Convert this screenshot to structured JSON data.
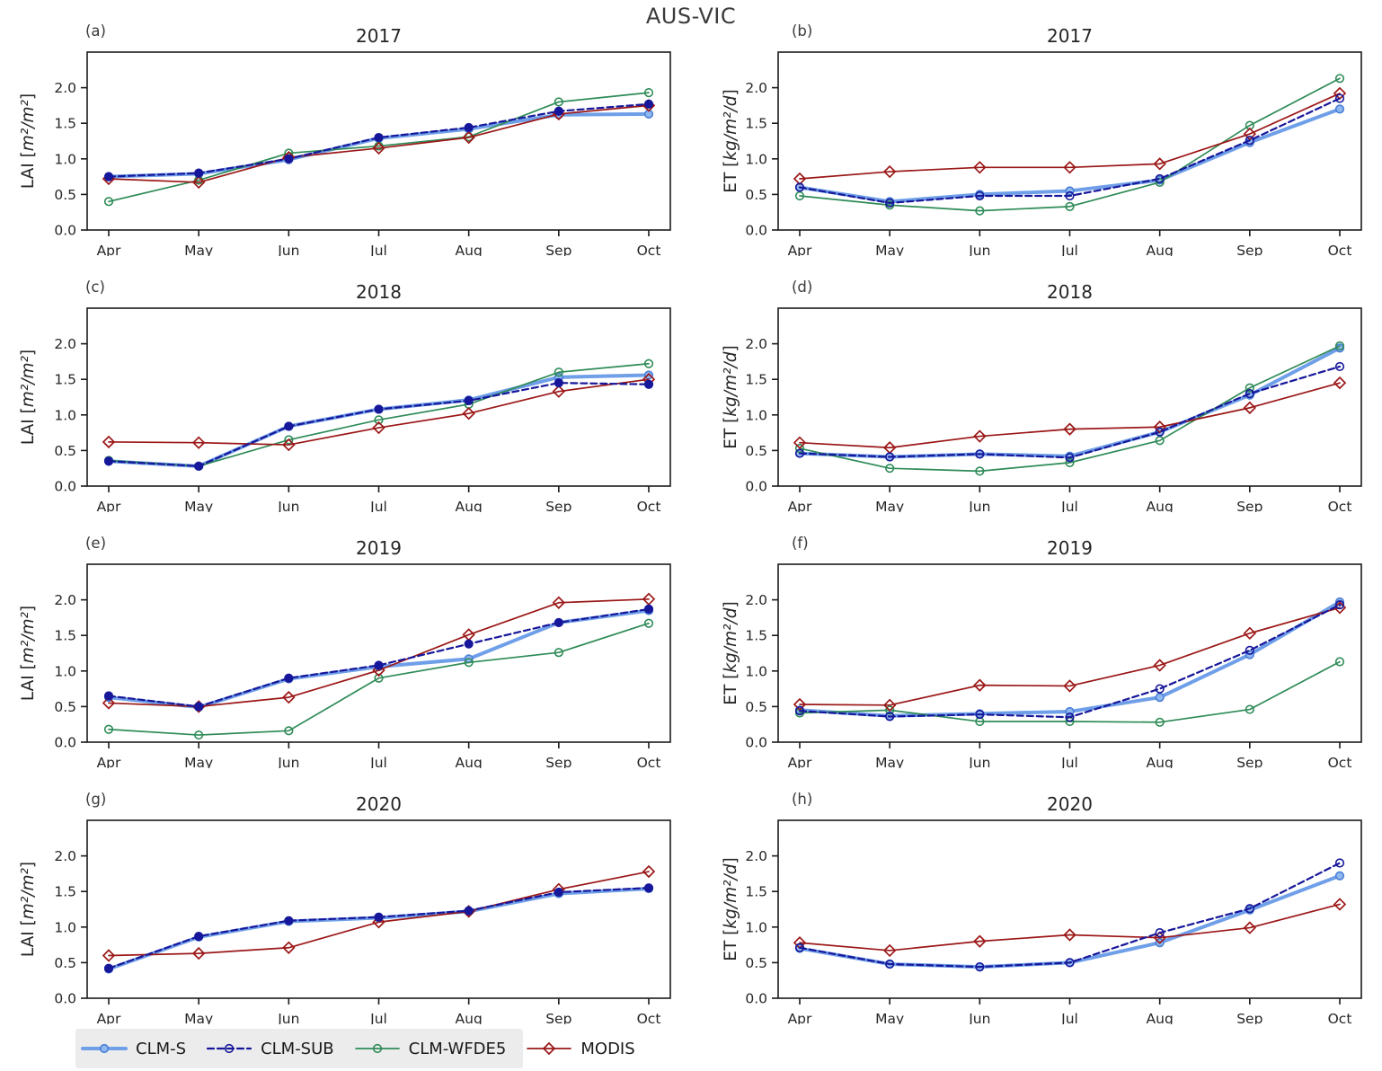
{
  "title": "AUS-VIC",
  "months": [
    "Apr",
    "May",
    "Jun",
    "Jul",
    "Aug",
    "Sep",
    "Oct"
  ],
  "yticks": [
    0.0,
    0.5,
    1.0,
    1.5,
    2.0
  ],
  "ylim": [
    0,
    2.5
  ],
  "axis_labels": {
    "lai": "LAI [m²/m²]",
    "et": "ET [kg/m²/d]"
  },
  "colors": {
    "clm_s": "#6f9fe8",
    "clm_s_edge": "#4a7fd6",
    "clm_s_fill": "#8fb8f0",
    "clm_sub": "#17179b",
    "clm_wfde5": "#2e8b57",
    "modis": "#9b1717",
    "axis": "#1a1a1a",
    "text": "#262626"
  },
  "legend": [
    {
      "label": "CLM-S",
      "color": "#6f9fe8",
      "lw": 4,
      "dash": "",
      "marker": "circle",
      "marker_edge": "#4a7fd6",
      "marker_fill": "#8fb8f0"
    },
    {
      "label": "CLM-SUB",
      "color": "#17179b",
      "lw": 2.2,
      "dash": "7 4",
      "marker": "circle",
      "marker_edge": "#17179b",
      "marker_fill": "none"
    },
    {
      "label": "CLM-WFDE5",
      "color": "#2e8b57",
      "lw": 1.7,
      "dash": "",
      "marker": "circle",
      "marker_edge": "#2e8b57",
      "marker_fill": "none"
    },
    {
      "label": "MODIS",
      "color": "#9b1717",
      "lw": 1.7,
      "dash": "",
      "marker": "diamond",
      "marker_edge": "#9b1717",
      "marker_fill": "none"
    }
  ],
  "chart_data": [
    {
      "type": "line",
      "panel": "(a)",
      "title": "2017",
      "metric": "lai",
      "ylabel": "LAI [m²/m²]",
      "xlabel": "",
      "ylim": [
        0,
        2.5
      ],
      "grid": false,
      "categories": [
        "Apr",
        "May",
        "Jun",
        "Jul",
        "Aug",
        "Sep",
        "Oct"
      ],
      "series": [
        {
          "name": "CLM-S",
          "values": [
            0.75,
            0.79,
            0.99,
            1.29,
            1.42,
            1.62,
            1.63
          ]
        },
        {
          "name": "CLM-SUB",
          "values": [
            0.75,
            0.8,
            1.0,
            1.3,
            1.44,
            1.67,
            1.77
          ]
        },
        {
          "name": "CLM-WFDE5",
          "values": [
            0.4,
            0.7,
            1.08,
            1.18,
            1.31,
            1.8,
            1.93
          ]
        },
        {
          "name": "MODIS",
          "values": [
            0.72,
            0.67,
            1.02,
            1.15,
            1.3,
            1.63,
            1.75
          ]
        }
      ]
    },
    {
      "type": "line",
      "panel": "(b)",
      "title": "2017",
      "metric": "et",
      "ylabel": "ET [kg/m²/d]",
      "xlabel": "",
      "ylim": [
        0,
        2.5
      ],
      "grid": false,
      "categories": [
        "Apr",
        "May",
        "Jun",
        "Jul",
        "Aug",
        "Sep",
        "Oct"
      ],
      "series": [
        {
          "name": "CLM-S",
          "values": [
            0.6,
            0.4,
            0.5,
            0.55,
            0.7,
            1.23,
            1.7
          ]
        },
        {
          "name": "CLM-SUB",
          "values": [
            0.6,
            0.38,
            0.48,
            0.48,
            0.72,
            1.26,
            1.85
          ]
        },
        {
          "name": "CLM-WFDE5",
          "values": [
            0.48,
            0.35,
            0.27,
            0.33,
            0.67,
            1.47,
            2.13
          ]
        },
        {
          "name": "MODIS",
          "values": [
            0.72,
            0.82,
            0.88,
            0.88,
            0.93,
            1.35,
            1.92
          ]
        }
      ]
    },
    {
      "type": "line",
      "panel": "(c)",
      "title": "2018",
      "metric": "lai",
      "ylabel": "LAI [m²/m²]",
      "xlabel": "",
      "ylim": [
        0,
        2.5
      ],
      "grid": false,
      "categories": [
        "Apr",
        "May",
        "Jun",
        "Jul",
        "Aug",
        "Sep",
        "Oct"
      ],
      "series": [
        {
          "name": "CLM-S",
          "values": [
            0.35,
            0.28,
            0.84,
            1.08,
            1.21,
            1.53,
            1.56
          ]
        },
        {
          "name": "CLM-SUB",
          "values": [
            0.35,
            0.28,
            0.84,
            1.08,
            1.2,
            1.45,
            1.43
          ]
        },
        {
          "name": "CLM-WFDE5",
          "values": [
            0.36,
            0.28,
            0.65,
            0.93,
            1.15,
            1.6,
            1.72
          ]
        },
        {
          "name": "MODIS",
          "values": [
            0.62,
            0.61,
            0.58,
            0.82,
            1.02,
            1.33,
            1.5
          ]
        }
      ]
    },
    {
      "type": "line",
      "panel": "(d)",
      "title": "2018",
      "metric": "et",
      "ylabel": "ET [kg/m²/d]",
      "xlabel": "",
      "ylim": [
        0,
        2.5
      ],
      "grid": false,
      "categories": [
        "Apr",
        "May",
        "Jun",
        "Jul",
        "Aug",
        "Sep",
        "Oct"
      ],
      "series": [
        {
          "name": "CLM-S",
          "values": [
            0.46,
            0.41,
            0.45,
            0.42,
            0.76,
            1.28,
            1.94
          ]
        },
        {
          "name": "CLM-SUB",
          "values": [
            0.46,
            0.41,
            0.45,
            0.4,
            0.76,
            1.3,
            1.68
          ]
        },
        {
          "name": "CLM-WFDE5",
          "values": [
            0.53,
            0.25,
            0.21,
            0.33,
            0.64,
            1.38,
            1.97
          ]
        },
        {
          "name": "MODIS",
          "values": [
            0.61,
            0.54,
            0.7,
            0.8,
            0.83,
            1.1,
            1.45
          ]
        }
      ]
    },
    {
      "type": "line",
      "panel": "(e)",
      "title": "2019",
      "metric": "lai",
      "ylabel": "LAI [m²/m²]",
      "xlabel": "",
      "ylim": [
        0,
        2.5
      ],
      "grid": false,
      "categories": [
        "Apr",
        "May",
        "Jun",
        "Jul",
        "Aug",
        "Sep",
        "Oct"
      ],
      "series": [
        {
          "name": "CLM-S",
          "values": [
            0.63,
            0.49,
            0.89,
            1.06,
            1.17,
            1.68,
            1.85
          ]
        },
        {
          "name": "CLM-SUB",
          "values": [
            0.65,
            0.5,
            0.9,
            1.08,
            1.38,
            1.68,
            1.87
          ]
        },
        {
          "name": "CLM-WFDE5",
          "values": [
            0.18,
            0.1,
            0.16,
            0.9,
            1.12,
            1.26,
            1.67
          ]
        },
        {
          "name": "MODIS",
          "values": [
            0.55,
            0.5,
            0.63,
            1.01,
            1.51,
            1.96,
            2.01
          ]
        }
      ]
    },
    {
      "type": "line",
      "panel": "(f)",
      "title": "2019",
      "metric": "et",
      "ylabel": "ET [kg/m²/d]",
      "xlabel": "",
      "ylim": [
        0,
        2.5
      ],
      "grid": false,
      "categories": [
        "Apr",
        "May",
        "Jun",
        "Jul",
        "Aug",
        "Sep",
        "Oct"
      ],
      "series": [
        {
          "name": "CLM-S",
          "values": [
            0.45,
            0.37,
            0.4,
            0.43,
            0.63,
            1.23,
            1.97
          ]
        },
        {
          "name": "CLM-SUB",
          "values": [
            0.44,
            0.36,
            0.39,
            0.35,
            0.75,
            1.29,
            1.93
          ]
        },
        {
          "name": "CLM-WFDE5",
          "values": [
            0.41,
            0.45,
            0.29,
            0.29,
            0.28,
            0.46,
            1.13
          ]
        },
        {
          "name": "MODIS",
          "values": [
            0.53,
            0.52,
            0.8,
            0.79,
            1.08,
            1.53,
            1.89
          ]
        }
      ]
    },
    {
      "type": "line",
      "panel": "(g)",
      "title": "2020",
      "metric": "lai",
      "ylabel": "LAI [m²/m²]",
      "xlabel": "",
      "ylim": [
        0,
        2.5
      ],
      "grid": false,
      "categories": [
        "Apr",
        "May",
        "Jun",
        "Jul",
        "Aug",
        "Sep",
        "Oct"
      ],
      "series": [
        {
          "name": "CLM-S",
          "values": [
            0.41,
            0.86,
            1.08,
            1.13,
            1.22,
            1.47,
            1.54
          ]
        },
        {
          "name": "CLM-SUB",
          "values": [
            0.42,
            0.87,
            1.09,
            1.14,
            1.23,
            1.49,
            1.55
          ]
        },
        {
          "name": "MODIS",
          "values": [
            0.6,
            0.63,
            0.71,
            1.07,
            1.22,
            1.53,
            1.78
          ]
        }
      ]
    },
    {
      "type": "line",
      "panel": "(h)",
      "title": "2020",
      "metric": "et",
      "ylabel": "ET [kg/m²/d]",
      "xlabel": "",
      "ylim": [
        0,
        2.5
      ],
      "grid": false,
      "categories": [
        "Apr",
        "May",
        "Jun",
        "Jul",
        "Aug",
        "Sep",
        "Oct"
      ],
      "series": [
        {
          "name": "CLM-S",
          "values": [
            0.7,
            0.48,
            0.44,
            0.5,
            0.78,
            1.24,
            1.72
          ]
        },
        {
          "name": "CLM-SUB",
          "values": [
            0.71,
            0.48,
            0.44,
            0.5,
            0.92,
            1.26,
            1.9
          ]
        },
        {
          "name": "MODIS",
          "values": [
            0.78,
            0.67,
            0.8,
            0.89,
            0.85,
            0.99,
            1.32
          ]
        }
      ]
    }
  ]
}
